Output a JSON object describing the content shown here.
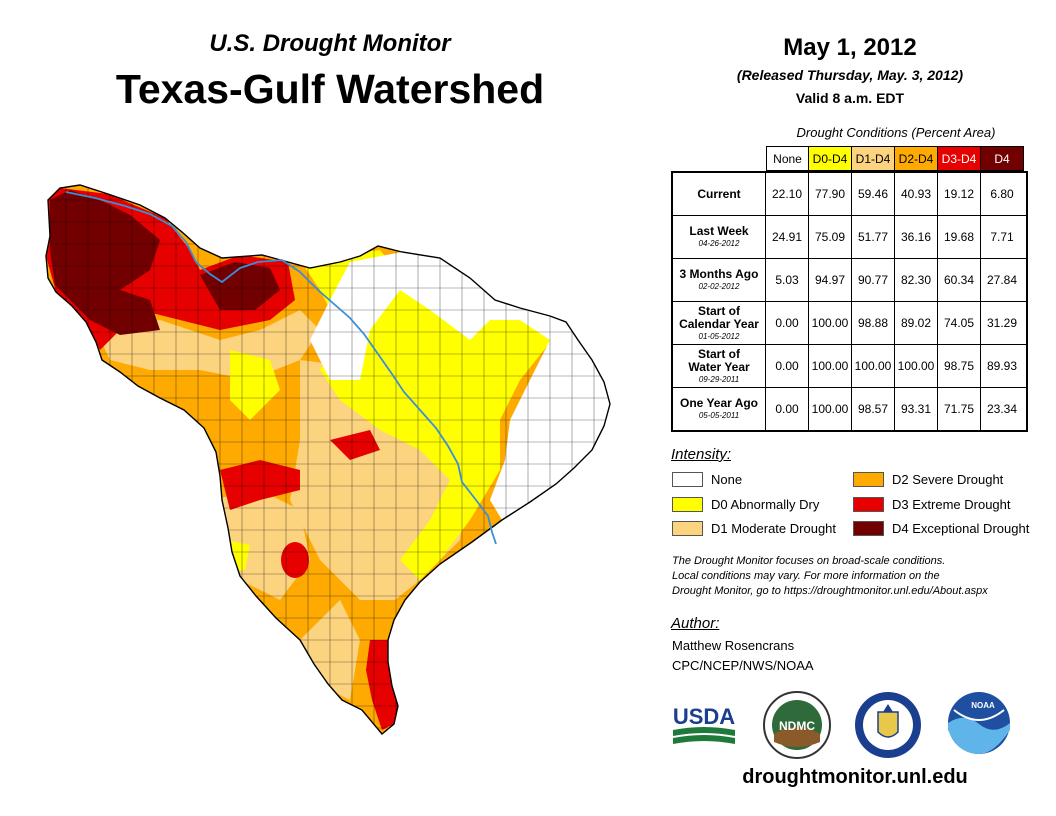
{
  "header": {
    "subtitle": "U.S. Drought Monitor",
    "title": "Texas-Gulf Watershed",
    "date": "May 1, 2012",
    "released": "(Released Thursday, May. 3, 2012)",
    "valid": "Valid 8 a.m. EDT"
  },
  "table": {
    "caption": "Drought Conditions (Percent Area)",
    "columns": [
      "None",
      "D0-D4",
      "D1-D4",
      "D2-D4",
      "D3-D4",
      "D4"
    ],
    "column_colors": [
      "#ffffff",
      "#ffff00",
      "#fcd37f",
      "#ffaa00",
      "#e60000",
      "#730000"
    ],
    "rows": [
      {
        "label": "Current",
        "label2": "",
        "date": "",
        "values": [
          "22.10",
          "77.90",
          "59.46",
          "40.93",
          "19.12",
          "6.80"
        ]
      },
      {
        "label": "Last Week",
        "label2": "",
        "date": "04-26-2012",
        "values": [
          "24.91",
          "75.09",
          "51.77",
          "36.16",
          "19.68",
          "7.71"
        ]
      },
      {
        "label": "3 Months Ago",
        "label2": "",
        "date": "02-02-2012",
        "values": [
          "5.03",
          "94.97",
          "90.77",
          "82.30",
          "60.34",
          "27.84"
        ]
      },
      {
        "label": "Start of",
        "label2": "Calendar Year",
        "date": "01-05-2012",
        "values": [
          "0.00",
          "100.00",
          "98.88",
          "89.02",
          "74.05",
          "31.29"
        ]
      },
      {
        "label": "Start of",
        "label2": "Water Year",
        "date": "09-29-2011",
        "values": [
          "0.00",
          "100.00",
          "100.00",
          "100.00",
          "98.75",
          "89.93"
        ]
      },
      {
        "label": "One Year Ago",
        "label2": "",
        "date": "05-05-2011",
        "values": [
          "0.00",
          "100.00",
          "98.57",
          "93.31",
          "71.75",
          "23.34"
        ]
      }
    ]
  },
  "legend": {
    "heading": "Intensity:",
    "items": [
      {
        "label": "None",
        "color": "#ffffff"
      },
      {
        "label": "D0 Abnormally Dry",
        "color": "#ffff00"
      },
      {
        "label": "D1 Moderate Drought",
        "color": "#fcd37f"
      },
      {
        "label": "D2 Severe Drought",
        "color": "#ffaa00"
      },
      {
        "label": "D3 Extreme Drought",
        "color": "#e60000"
      },
      {
        "label": "D4 Exceptional Drought",
        "color": "#730000"
      }
    ]
  },
  "note": {
    "line1": "The Drought Monitor focuses on broad-scale conditions.",
    "line2": "Local conditions may vary. For more information on the",
    "line3": "Drought Monitor, go to https://droughtmonitor.unl.edu/About.aspx"
  },
  "author": {
    "heading": "Author:",
    "name": "Matthew Rosencrans",
    "org": "CPC/NCEP/NWS/NOAA"
  },
  "logos": {
    "usda": "USDA",
    "ndmc": "NDMC",
    "noaa": "NOAA",
    "usda_icon": "usda-logo",
    "ndmc_icon": "ndmc-logo",
    "doc_icon": "department-of-commerce-seal",
    "noaa_icon": "noaa-logo"
  },
  "footer": {
    "url": "droughtmonitor.unl.edu"
  },
  "map": {
    "region": "Texas-Gulf Watershed",
    "colors": {
      "none": "#ffffff",
      "d0": "#ffff00",
      "d1": "#fcd37f",
      "d2": "#ffaa00",
      "d3": "#e60000",
      "d4": "#730000",
      "river": "#3a8fd9",
      "county": "#000000"
    }
  }
}
